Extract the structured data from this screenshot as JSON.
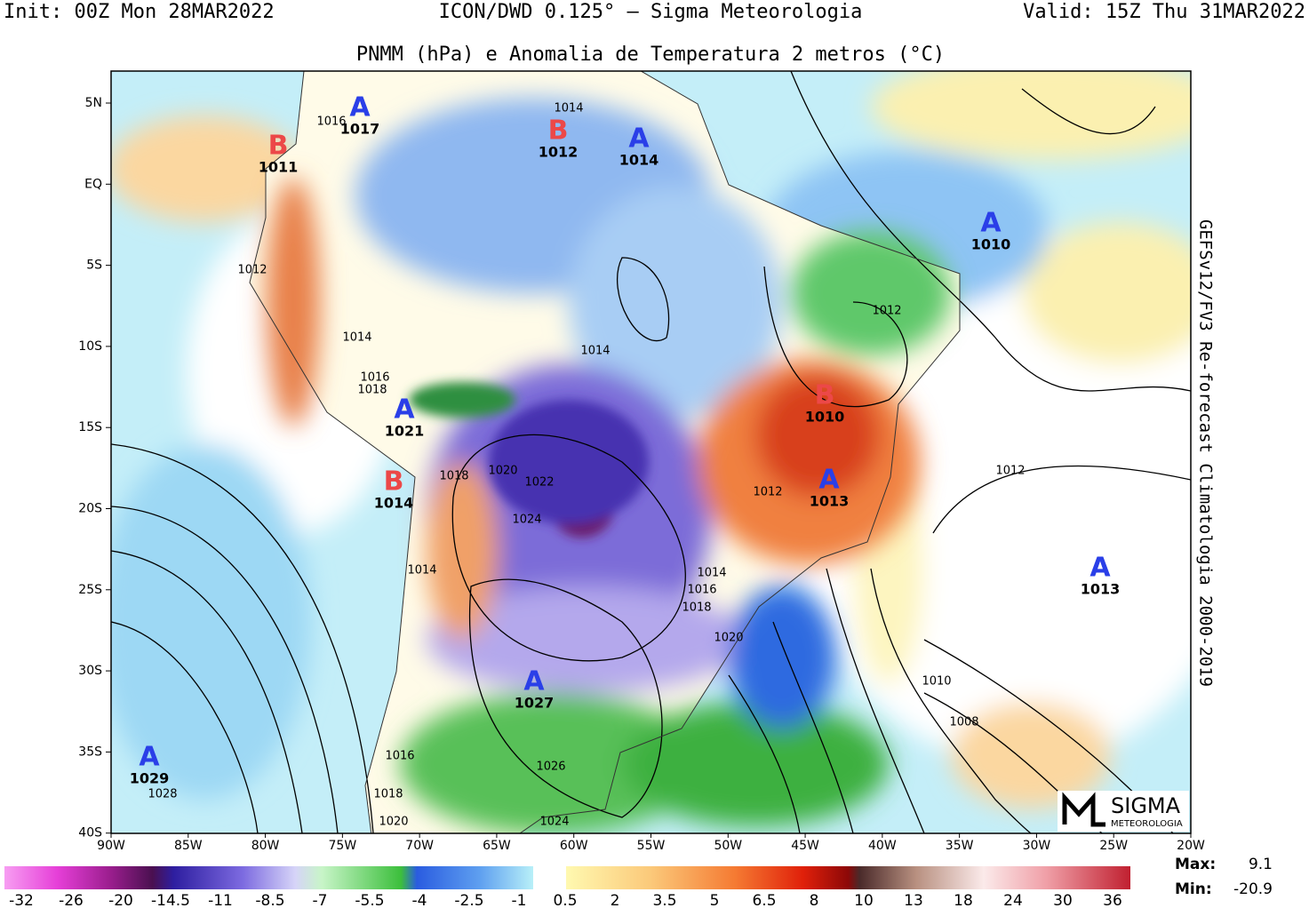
{
  "header": {
    "init": "Init: 00Z Mon 28MAR2022",
    "model": "ICON/DWD 0.125° — Sigma Meteorologia",
    "valid": "Valid: 15Z Thu 31MAR2022",
    "title": "PNMM (hPa) e Anomalia de Temperatura 2 metros (°C)",
    "side_label": "GEFSv12/FV3 Re-forecast Climatologia 2000-2019"
  },
  "lat_ticks": [
    "5N",
    "EQ",
    "5S",
    "10S",
    "15S",
    "20S",
    "25S",
    "30S",
    "35S",
    "40S"
  ],
  "lon_ticks": [
    "90W",
    "85W",
    "80W",
    "75W",
    "70W",
    "65W",
    "60W",
    "55W",
    "50W",
    "45W",
    "40W",
    "35W",
    "30W",
    "25W",
    "20W"
  ],
  "centers": [
    {
      "letter": "A",
      "value": "1017"
    },
    {
      "letter": "B",
      "value": "1011"
    },
    {
      "letter": "B",
      "value": "1012"
    },
    {
      "letter": "A",
      "value": "1014"
    },
    {
      "letter": "A",
      "value": "1010"
    },
    {
      "letter": "B",
      "value": "1010"
    },
    {
      "letter": "A",
      "value": "1013"
    },
    {
      "letter": "A",
      "value": "1021"
    },
    {
      "letter": "B",
      "value": "1014"
    },
    {
      "letter": "A",
      "value": "1013"
    },
    {
      "letter": "A",
      "value": "1027"
    },
    {
      "letter": "A",
      "value": "1029"
    }
  ],
  "isobar_labels": [
    "1016",
    "1014",
    "1012",
    "1014",
    "1014",
    "1012",
    "1016",
    "1018",
    "1020",
    "1018",
    "1022",
    "1024",
    "1012",
    "1012",
    "1014",
    "1014",
    "1016",
    "1018",
    "1020",
    "1010",
    "1008",
    "1016",
    "1026",
    "1018",
    "1028",
    "1020",
    "1024"
  ],
  "colorbar_cold": [
    "-32",
    "-26",
    "-20",
    "-14.5",
    "-11",
    "-8.5",
    "-7",
    "-5.5",
    "-4",
    "-2.5",
    "-1"
  ],
  "colorbar_warm": [
    "0.5",
    "2",
    "3.5",
    "5",
    "6.5",
    "8",
    "10",
    "13",
    "18",
    "24",
    "30",
    "36"
  ],
  "stats": {
    "max_label": "Max:",
    "max_value": "9.1",
    "min_label": "Min:",
    "min_value": "-20.9"
  },
  "logo": {
    "name": "SIGMA",
    "sub": "METEOROLOGIA"
  }
}
